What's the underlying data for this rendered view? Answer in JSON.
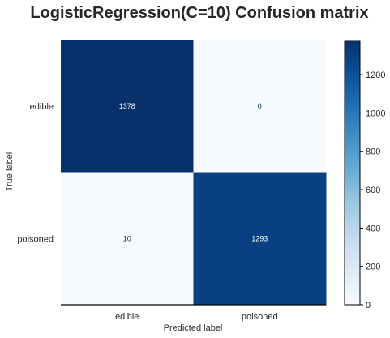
{
  "chart_data": {
    "type": "heatmap",
    "title": "LogisticRegression(C=10) Confusion matrix",
    "xlabel": "Predicted label",
    "ylabel": "True label",
    "x_categories": [
      "edible",
      "poisoned"
    ],
    "y_categories": [
      "edible",
      "poisoned"
    ],
    "values": [
      [
        1378,
        0
      ],
      [
        10,
        1293
      ]
    ],
    "cell_labels": [
      [
        "1378",
        "0"
      ],
      [
        "10",
        "1293"
      ]
    ],
    "colormap": "Blues",
    "vmin": 0,
    "vmax": 1378,
    "colorbar_ticks": [
      0,
      200,
      400,
      600,
      800,
      1000,
      1200
    ],
    "colorbar_tick_labels": [
      "0",
      "200",
      "400",
      "600",
      "800",
      "1000",
      "1200"
    ]
  },
  "colors": {
    "low": "#f7fbff",
    "high": "#08306b",
    "text_on_dark": "#f7fbff",
    "text_on_light": "#08306b",
    "axis": "#000000",
    "text": "#262626"
  }
}
